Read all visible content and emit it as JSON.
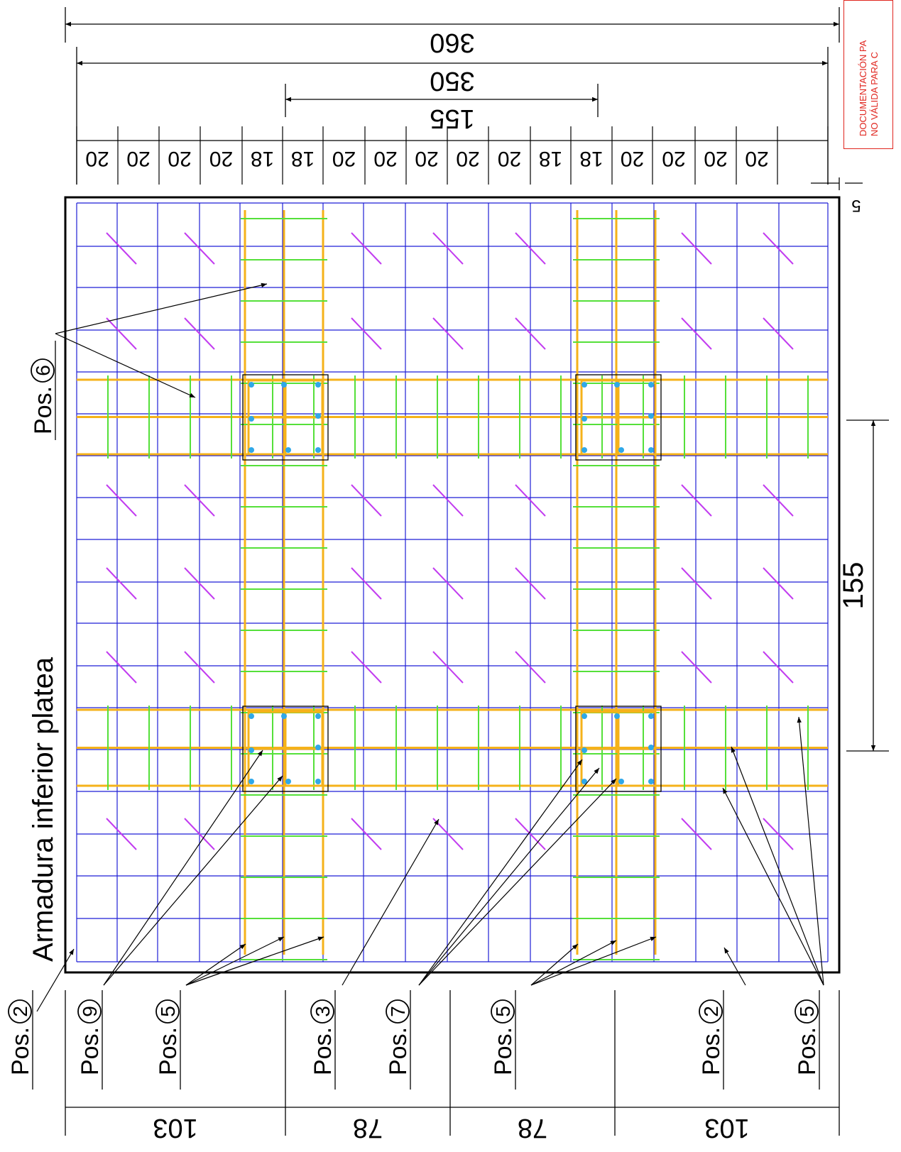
{
  "title": "Armadura inferior platea",
  "stamp": {
    "line1": "DOCUMENTACIÓN PA",
    "line2": "NO VÁLIDA PARA C",
    "color": "#e0261f"
  },
  "colors": {
    "mesh": "#1f1fd6",
    "beam": "#f5b21a",
    "stirrup": "#55e03a",
    "diagonal": "#c23cf0",
    "rebar_dot": "#2fa8e8",
    "outline": "#000000"
  },
  "top_dimensions": {
    "overall": "360",
    "inner": "350",
    "middle": "155",
    "segments": [
      "20",
      "20",
      "20",
      "20",
      "18",
      "18",
      "20",
      "20",
      "20",
      "20",
      "20",
      "18",
      "18",
      "20",
      "20",
      "20",
      "20"
    ],
    "edge": "5"
  },
  "side_dimension": "155",
  "bottom_dimensions": [
    "103",
    "78",
    "78",
    "103"
  ],
  "position_labels": [
    {
      "prefix": "Pos.",
      "num": "2"
    },
    {
      "prefix": "Pos.",
      "num": "9"
    },
    {
      "prefix": "Pos.",
      "num": "5"
    },
    {
      "prefix": "Pos.",
      "num": "3"
    },
    {
      "prefix": "Pos.",
      "num": "7"
    },
    {
      "prefix": "Pos.",
      "num": "5"
    },
    {
      "prefix": "Pos.",
      "num": "2"
    },
    {
      "prefix": "Pos.",
      "num": "5"
    }
  ],
  "pos6_label": {
    "prefix": "Pos.",
    "num": "6"
  }
}
